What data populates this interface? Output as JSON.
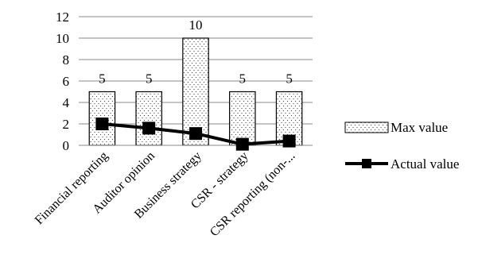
{
  "chart_data": {
    "type": "bar",
    "categories": [
      "Financial reporting",
      "Auditor opinion",
      "Business strategy",
      "CSR - strategy",
      "CSR reporting (non-..."
    ],
    "series": [
      {
        "name": "Max value",
        "type": "bar",
        "pattern": "dotted",
        "values": [
          5,
          5,
          10,
          5,
          5
        ],
        "data_labels": [
          "5",
          "5",
          "10",
          "5",
          "5"
        ]
      },
      {
        "name": "Actual value",
        "type": "line",
        "marker": "square",
        "values": [
          2.0,
          1.6,
          1.1,
          0.1,
          0.4
        ]
      }
    ],
    "ylim": [
      0,
      12
    ],
    "yticks": [
      0,
      2,
      4,
      6,
      8,
      10,
      12
    ],
    "grid": true,
    "legend_position": "right",
    "colors": {
      "bar_fill": "#ffffff",
      "bar_dots": "#555555",
      "line": "#000000"
    }
  }
}
